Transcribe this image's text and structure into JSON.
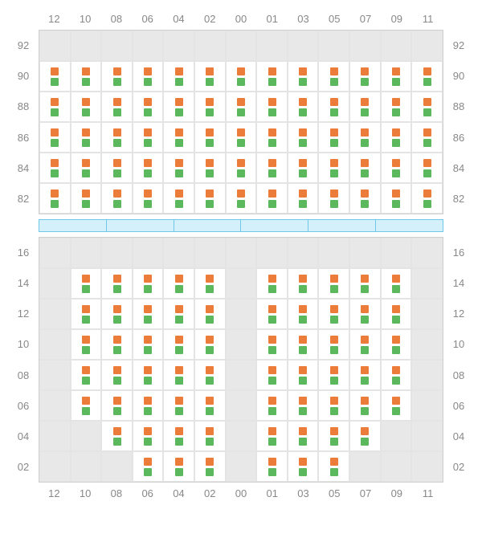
{
  "colors": {
    "marker_orange": "#ec7c3a",
    "marker_green": "#5cb85c",
    "empty_bg": "#e8e8e8",
    "active_bg": "#ffffff",
    "grid_border": "#e4e4e4",
    "outer_border": "#d0d0d0",
    "label_color": "#888888",
    "separator_fill": "#d4f0fb",
    "separator_border": "#6fc8e8"
  },
  "col_labels": [
    "12",
    "10",
    "08",
    "06",
    "04",
    "02",
    "00",
    "01",
    "03",
    "05",
    "07",
    "09",
    "11"
  ],
  "top": {
    "row_labels": [
      "92",
      "90",
      "88",
      "86",
      "84",
      "82"
    ],
    "occupancy": [
      [
        0,
        0,
        0,
        0,
        0,
        0,
        0,
        0,
        0,
        0,
        0,
        0,
        0
      ],
      [
        1,
        1,
        1,
        1,
        1,
        1,
        1,
        1,
        1,
        1,
        1,
        1,
        1
      ],
      [
        1,
        1,
        1,
        1,
        1,
        1,
        1,
        1,
        1,
        1,
        1,
        1,
        1
      ],
      [
        1,
        1,
        1,
        1,
        1,
        1,
        1,
        1,
        1,
        1,
        1,
        1,
        1
      ],
      [
        1,
        1,
        1,
        1,
        1,
        1,
        1,
        1,
        1,
        1,
        1,
        1,
        1
      ],
      [
        1,
        1,
        1,
        1,
        1,
        1,
        1,
        1,
        1,
        1,
        1,
        1,
        1
      ]
    ]
  },
  "separator_segments": 6,
  "bottom": {
    "row_labels": [
      "16",
      "14",
      "12",
      "10",
      "08",
      "06",
      "04",
      "02"
    ],
    "occupancy": [
      [
        0,
        0,
        0,
        0,
        0,
        0,
        0,
        0,
        0,
        0,
        0,
        0,
        0
      ],
      [
        0,
        1,
        1,
        1,
        1,
        1,
        0,
        1,
        1,
        1,
        1,
        1,
        0
      ],
      [
        0,
        1,
        1,
        1,
        1,
        1,
        0,
        1,
        1,
        1,
        1,
        1,
        0
      ],
      [
        0,
        1,
        1,
        1,
        1,
        1,
        0,
        1,
        1,
        1,
        1,
        1,
        0
      ],
      [
        0,
        1,
        1,
        1,
        1,
        1,
        0,
        1,
        1,
        1,
        1,
        1,
        0
      ],
      [
        0,
        1,
        1,
        1,
        1,
        1,
        0,
        1,
        1,
        1,
        1,
        1,
        0
      ],
      [
        0,
        0,
        1,
        1,
        1,
        1,
        0,
        1,
        1,
        1,
        1,
        0,
        0
      ],
      [
        0,
        0,
        0,
        1,
        1,
        1,
        0,
        1,
        1,
        1,
        0,
        0,
        0
      ]
    ]
  }
}
